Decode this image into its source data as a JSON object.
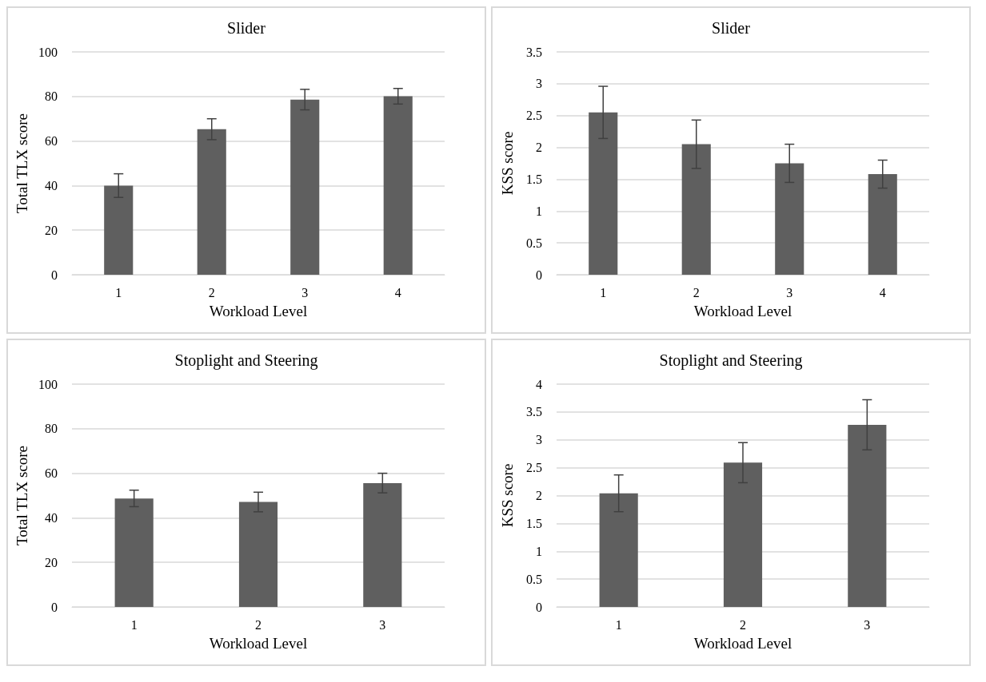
{
  "chart_data": [
    {
      "type": "bar",
      "title": "Slider",
      "xlabel": "Workload Level",
      "ylabel": "Total TLX score",
      "categories": [
        "1",
        "2",
        "3",
        "4"
      ],
      "values": [
        40,
        65.3,
        78.6,
        80.1
      ],
      "errors": [
        5.3,
        4.7,
        4.6,
        3.5
      ],
      "color": "#5f5f5f",
      "ylim": [
        0,
        100
      ],
      "yticks": [
        0,
        20,
        40,
        60,
        80,
        100
      ],
      "grid": "y"
    },
    {
      "type": "bar",
      "title": "Slider",
      "xlabel": "Workload Level",
      "ylabel": "KSS score",
      "categories": [
        "1",
        "2",
        "3",
        "4"
      ],
      "values": [
        2.55,
        2.05,
        1.75,
        1.58
      ],
      "errors": [
        0.41,
        0.38,
        0.3,
        0.22
      ],
      "color": "#5f5f5f",
      "ylim": [
        0,
        3.5
      ],
      "yticks": [
        0,
        0.5,
        1,
        1.5,
        2,
        2.5,
        3,
        3.5
      ],
      "grid": "y"
    },
    {
      "type": "bar",
      "title": "Stoplight and Steering",
      "xlabel": "Workload Level",
      "ylabel": "Total TLX score",
      "categories": [
        "1",
        "2",
        "3"
      ],
      "values": [
        48.7,
        47.1,
        55.6
      ],
      "errors": [
        3.7,
        4.4,
        4.4
      ],
      "color": "#5f5f5f",
      "ylim": [
        0,
        100
      ],
      "yticks": [
        0,
        20,
        40,
        60,
        80,
        100
      ],
      "grid": "y"
    },
    {
      "type": "bar",
      "title": "Stoplight and Steering",
      "xlabel": "Workload Level",
      "ylabel": "KSS score",
      "categories": [
        "1",
        "2",
        "3"
      ],
      "values": [
        2.04,
        2.59,
        3.27
      ],
      "errors": [
        0.33,
        0.36,
        0.45
      ],
      "color": "#5f5f5f",
      "ylim": [
        0,
        4
      ],
      "yticks": [
        0,
        0.5,
        1,
        1.5,
        2,
        2.5,
        3,
        3.5,
        4
      ],
      "grid": "y"
    }
  ]
}
